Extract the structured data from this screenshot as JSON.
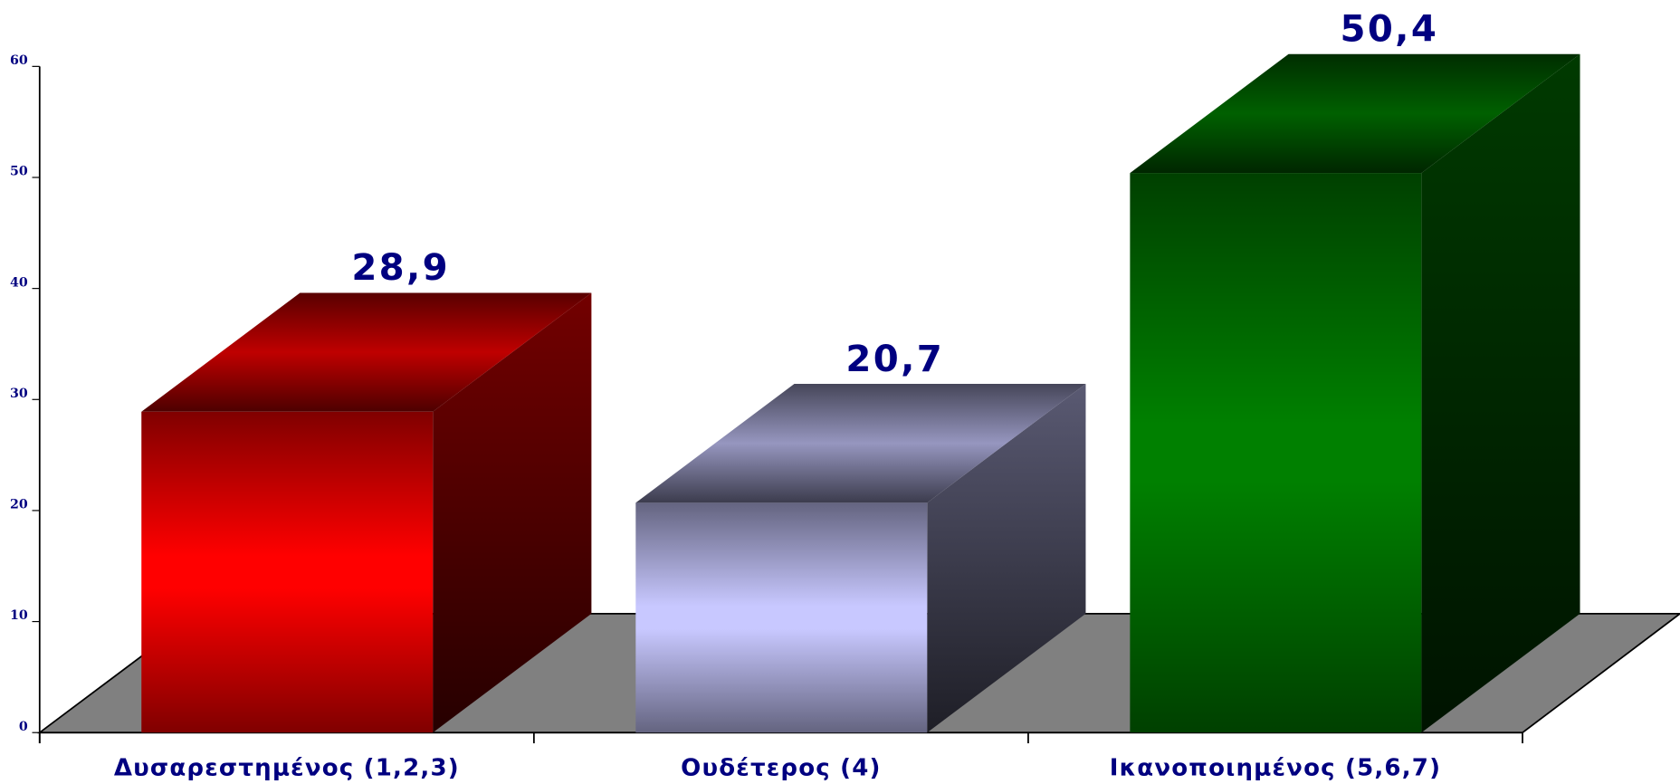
{
  "chart_data": {
    "type": "bar3d",
    "categories": [
      "Δυσαρεστημένος (1,2,3)",
      "Ουδέτερος (4)",
      "Ικανοποιημένος (5,6,7)"
    ],
    "values": [
      28.9,
      20.7,
      50.4
    ],
    "value_labels": [
      "28,9",
      "20,7",
      "50,4"
    ],
    "colors": [
      "#ff0000",
      "#c8c8ff",
      "#008000"
    ],
    "ylim": [
      0,
      60
    ],
    "yticks": [
      0,
      10,
      20,
      30,
      40,
      50,
      60
    ]
  }
}
